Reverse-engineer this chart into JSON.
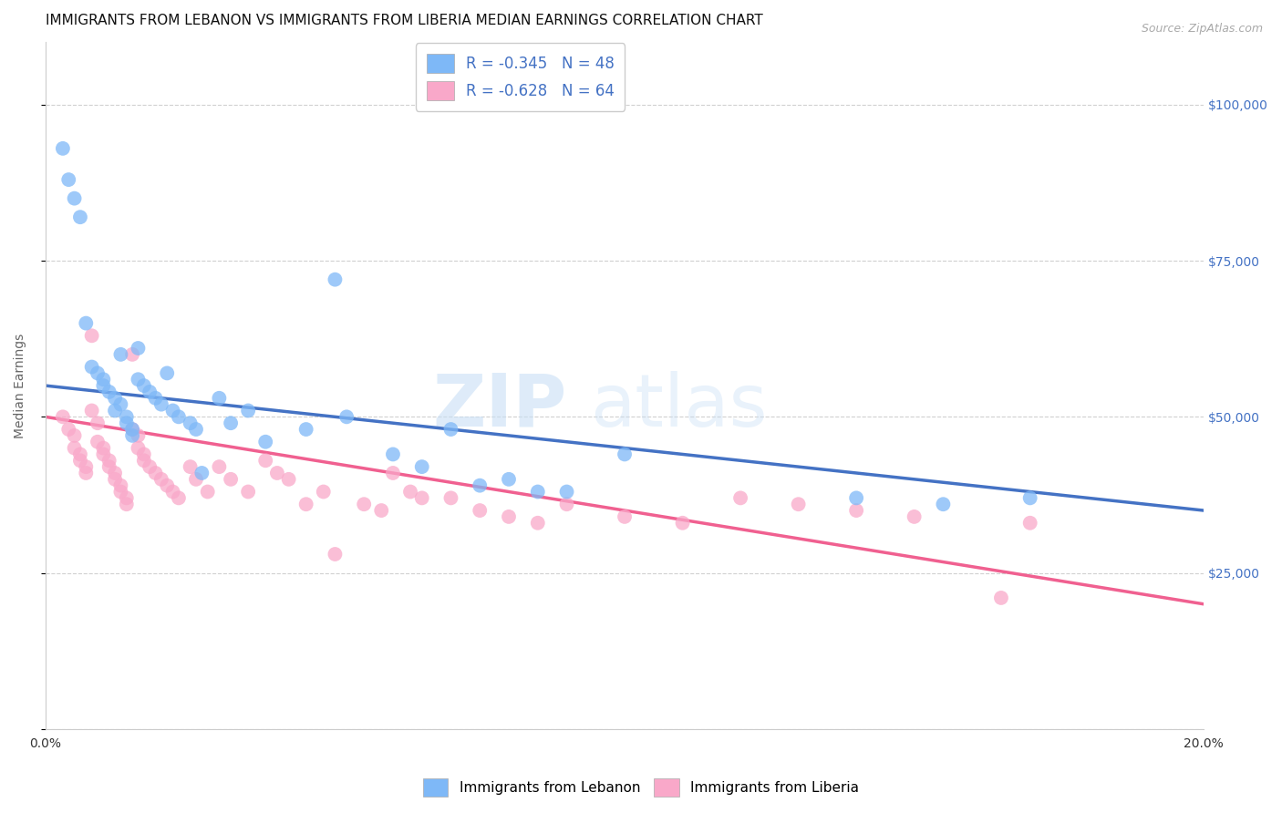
{
  "title": "IMMIGRANTS FROM LEBANON VS IMMIGRANTS FROM LIBERIA MEDIAN EARNINGS CORRELATION CHART",
  "source": "Source: ZipAtlas.com",
  "ylabel": "Median Earnings",
  "xlim": [
    0.0,
    0.2
  ],
  "ylim": [
    0,
    110000
  ],
  "yticks": [
    0,
    25000,
    50000,
    75000,
    100000
  ],
  "background_color": "#ffffff",
  "watermark_zip": "ZIP",
  "watermark_atlas": "atlas",
  "color_lebanon": "#7eb8f7",
  "color_liberia": "#f9a8c9",
  "line_color_lebanon": "#4472c4",
  "line_color_liberia": "#f06090",
  "lebanon_x": [
    0.003,
    0.004,
    0.005,
    0.006,
    0.007,
    0.008,
    0.009,
    0.01,
    0.01,
    0.011,
    0.012,
    0.012,
    0.013,
    0.013,
    0.014,
    0.014,
    0.015,
    0.015,
    0.016,
    0.016,
    0.017,
    0.018,
    0.019,
    0.02,
    0.021,
    0.022,
    0.023,
    0.025,
    0.026,
    0.027,
    0.03,
    0.032,
    0.035,
    0.038,
    0.045,
    0.05,
    0.052,
    0.06,
    0.065,
    0.07,
    0.075,
    0.08,
    0.085,
    0.09,
    0.1,
    0.14,
    0.155,
    0.17
  ],
  "lebanon_y": [
    93000,
    88000,
    85000,
    82000,
    65000,
    58000,
    57000,
    56000,
    55000,
    54000,
    53000,
    51000,
    60000,
    52000,
    50000,
    49000,
    48000,
    47000,
    61000,
    56000,
    55000,
    54000,
    53000,
    52000,
    57000,
    51000,
    50000,
    49000,
    48000,
    41000,
    53000,
    49000,
    51000,
    46000,
    48000,
    72000,
    50000,
    44000,
    42000,
    48000,
    39000,
    40000,
    38000,
    38000,
    44000,
    37000,
    36000,
    37000
  ],
  "liberia_x": [
    0.003,
    0.004,
    0.005,
    0.005,
    0.006,
    0.006,
    0.007,
    0.007,
    0.008,
    0.008,
    0.009,
    0.009,
    0.01,
    0.01,
    0.011,
    0.011,
    0.012,
    0.012,
    0.013,
    0.013,
    0.014,
    0.014,
    0.015,
    0.015,
    0.016,
    0.016,
    0.017,
    0.017,
    0.018,
    0.019,
    0.02,
    0.021,
    0.022,
    0.023,
    0.025,
    0.026,
    0.028,
    0.03,
    0.032,
    0.035,
    0.038,
    0.04,
    0.042,
    0.045,
    0.048,
    0.05,
    0.055,
    0.058,
    0.06,
    0.063,
    0.065,
    0.07,
    0.075,
    0.08,
    0.085,
    0.09,
    0.1,
    0.11,
    0.12,
    0.13,
    0.14,
    0.15,
    0.165,
    0.17
  ],
  "liberia_y": [
    50000,
    48000,
    47000,
    45000,
    44000,
    43000,
    42000,
    41000,
    51000,
    63000,
    49000,
    46000,
    45000,
    44000,
    43000,
    42000,
    41000,
    40000,
    39000,
    38000,
    37000,
    36000,
    60000,
    48000,
    47000,
    45000,
    44000,
    43000,
    42000,
    41000,
    40000,
    39000,
    38000,
    37000,
    42000,
    40000,
    38000,
    42000,
    40000,
    38000,
    43000,
    41000,
    40000,
    36000,
    38000,
    28000,
    36000,
    35000,
    41000,
    38000,
    37000,
    37000,
    35000,
    34000,
    33000,
    36000,
    34000,
    33000,
    37000,
    36000,
    35000,
    34000,
    21000,
    33000
  ],
  "legend_line1": "R = -0.345   N = 48",
  "legend_line2": "R = -0.628   N = 64",
  "bottom_legend1": "Immigrants from Lebanon",
  "bottom_legend2": "Immigrants from Liberia",
  "title_fontsize": 11,
  "tick_fontsize": 10,
  "grid_color": "#d0d0d0",
  "right_tick_color": "#4472c4"
}
